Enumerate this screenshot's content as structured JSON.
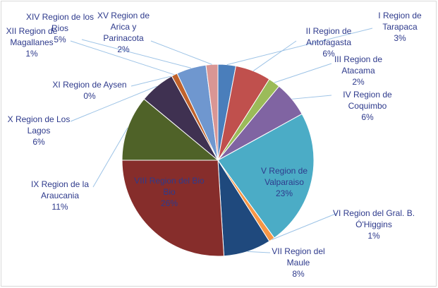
{
  "chart_data": {
    "type": "pie",
    "categories": [
      "I Region de Tarapaca",
      "II Region de Antofagasta",
      "III Region de Atacama",
      "IV Region de Coquimbo",
      "V Region de Valparaiso",
      "VI Region del Gral. B. Ó'Higgins",
      "VII Region del Maule",
      "VIII Region del Bio Bio",
      "IX Region de la Araucania",
      "X Region de Los Lagos",
      "XI Region de Aysen",
      "XII Region de Magallanes",
      "XIV Region de los Rios",
      "XV Region de Arica y Parinacota"
    ],
    "values": [
      3,
      6,
      2,
      6,
      23,
      1,
      8,
      26,
      11,
      6,
      0,
      1,
      5,
      2
    ],
    "value_labels": [
      "3%",
      "6%",
      "2%",
      "6%",
      "23%",
      "1%",
      "8%",
      "26%",
      "11%",
      "6%",
      "0%",
      "1%",
      "5%",
      "2%"
    ],
    "colors": [
      "#4a7ebb",
      "#c0504d",
      "#9bbb59",
      "#8064a2",
      "#4bacc6",
      "#f79646",
      "#1f497d",
      "#862d2b",
      "#4f6228",
      "#3f3151",
      "#215968",
      "#c0622b",
      "#6f97cf",
      "#d99694"
    ]
  }
}
